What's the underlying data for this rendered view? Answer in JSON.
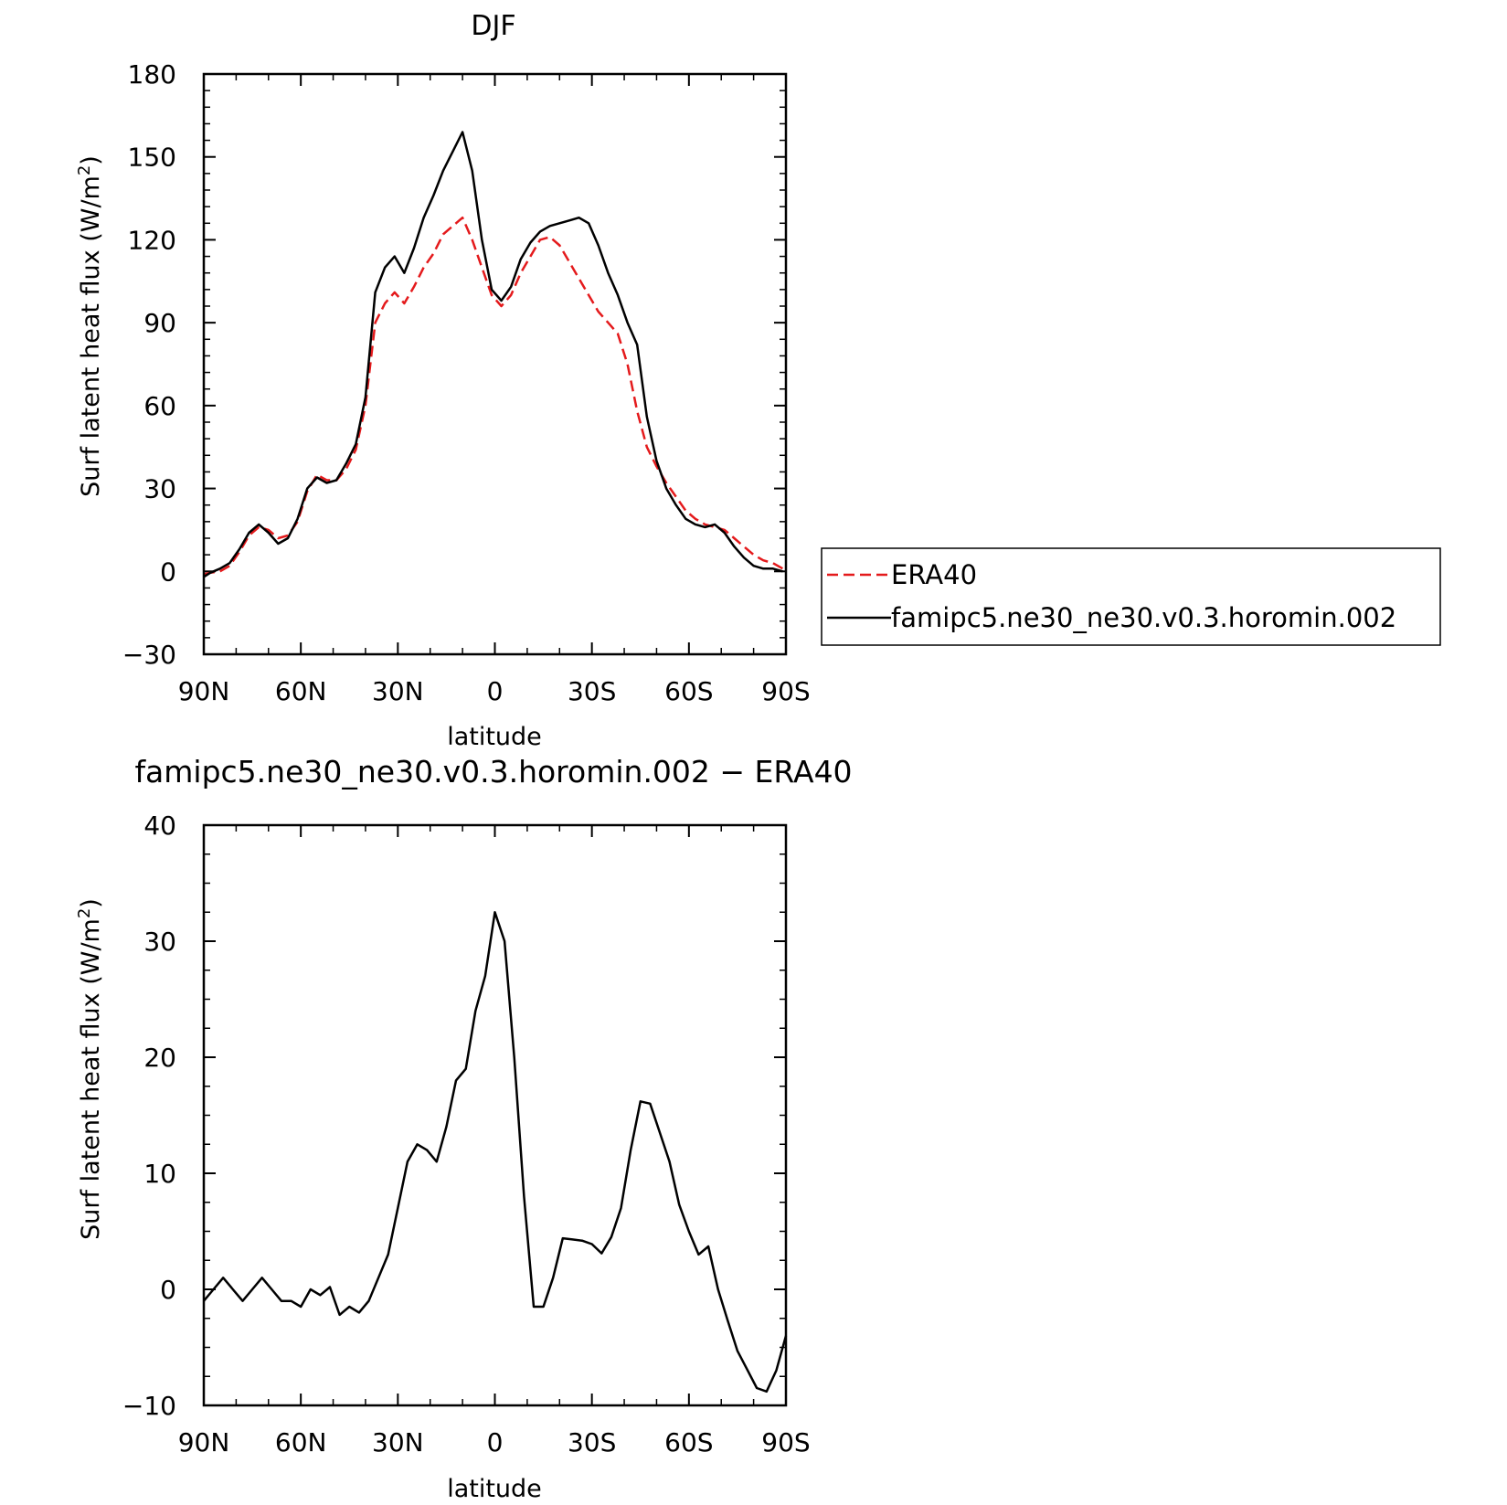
{
  "chart_data": [
    {
      "type": "line",
      "title": "DJF",
      "xlabel": "latitude",
      "ylabel": "Surf latent heat flux (W/m²)",
      "ylabel_text": "Surf latent heat flux (W/m",
      "ylabel_sup": "2",
      "ylabel_close": ")",
      "xlim": [
        90,
        -90
      ],
      "ylim": [
        -30,
        180
      ],
      "xticks": [
        90,
        60,
        30,
        0,
        -30,
        -60,
        -90
      ],
      "xtick_labels": [
        "90N",
        "60N",
        "30N",
        "0",
        "30S",
        "60S",
        "90S"
      ],
      "yticks": [
        -30,
        0,
        30,
        60,
        90,
        120,
        150,
        180
      ],
      "ytick_labels": [
        "−30",
        "0",
        "30",
        "60",
        "90",
        "120",
        "150",
        "180"
      ],
      "legend": {
        "placement": "right",
        "entries": [
          "ERA40",
          "famipc5.ne30_ne30.v0.3.horomin.002"
        ]
      },
      "series": [
        {
          "name": "ERA40",
          "color": "#e41a1c",
          "style": "dashed",
          "x": [
            90,
            88,
            85,
            82,
            79,
            76,
            73,
            70,
            67,
            64,
            61,
            58,
            55,
            52,
            49,
            46,
            43,
            40,
            37,
            34,
            31,
            28,
            25,
            22,
            19,
            16,
            13,
            10,
            7,
            4,
            1,
            -2,
            -5,
            -8,
            -11,
            -14,
            -17,
            -20,
            -23,
            -26,
            -29,
            -32,
            -35,
            -38,
            -41,
            -44,
            -47,
            -50,
            -53,
            -56,
            -59,
            -62,
            -65,
            -68,
            -71,
            -74,
            -77,
            -80,
            -83,
            -86,
            -89
          ],
          "y": [
            -1,
            -0.5,
            0,
            2,
            7,
            13,
            16,
            15,
            12,
            13,
            18,
            29,
            35,
            33,
            33,
            37,
            44,
            60,
            90,
            97,
            101,
            97,
            103,
            110,
            115,
            122,
            125,
            128,
            120,
            110,
            100,
            96,
            100,
            108,
            114,
            120,
            121,
            118,
            112,
            106,
            100,
            94,
            90,
            86,
            75,
            58,
            45,
            38,
            32,
            27,
            22,
            19,
            17,
            16,
            15,
            12,
            9,
            6,
            4,
            3,
            1
          ]
        },
        {
          "name": "famipc5.ne30_ne30.v0.3.horomin.002",
          "color": "#000000",
          "style": "solid",
          "x": [
            90,
            88,
            85,
            82,
            79,
            76,
            73,
            70,
            67,
            64,
            61,
            58,
            55,
            52,
            49,
            46,
            43,
            40,
            37,
            34,
            31,
            28,
            25,
            22,
            19,
            16,
            13,
            10,
            7,
            4,
            1,
            -2,
            -5,
            -8,
            -11,
            -14,
            -17,
            -20,
            -23,
            -26,
            -29,
            -32,
            -35,
            -38,
            -41,
            -44,
            -47,
            -50,
            -53,
            -56,
            -59,
            -62,
            -65,
            -68,
            -71,
            -74,
            -77,
            -80,
            -83,
            -86,
            -89
          ],
          "y": [
            -2,
            -0.5,
            1,
            3,
            8,
            14,
            17,
            14,
            10,
            12,
            19,
            30,
            34,
            32,
            33,
            39,
            46,
            63,
            101,
            110,
            114,
            108,
            117,
            128,
            136,
            145,
            152,
            159,
            145,
            120,
            102,
            98,
            103,
            113,
            119,
            123,
            125,
            126,
            127,
            128,
            126,
            118,
            108,
            100,
            90,
            82,
            56,
            40,
            30,
            24,
            19,
            17,
            16,
            17,
            14,
            9,
            5,
            2,
            1,
            1,
            0
          ]
        }
      ]
    },
    {
      "type": "line",
      "title": "famipc5.ne30_ne30.v0.3.horomin.002 − ERA40",
      "xlabel": "latitude",
      "ylabel": "Surf latent heat flux (W/m²)",
      "ylabel_text": "Surf latent heat flux (W/m",
      "ylabel_sup": "2",
      "ylabel_close": ")",
      "xlim": [
        90,
        -90
      ],
      "ylim": [
        -10,
        40
      ],
      "xticks": [
        90,
        60,
        30,
        0,
        -30,
        -60,
        -90
      ],
      "xtick_labels": [
        "90N",
        "60N",
        "30N",
        "0",
        "30S",
        "60S",
        "90S"
      ],
      "yticks": [
        -10,
        0,
        10,
        20,
        30,
        40
      ],
      "ytick_labels": [
        "−10",
        "0",
        "10",
        "20",
        "30",
        "40"
      ],
      "series": [
        {
          "color": "#000000",
          "style": "solid",
          "x": [
            90,
            87,
            84,
            81,
            78,
            75,
            72,
            69,
            66,
            63,
            60,
            57,
            54,
            51,
            48,
            45,
            42,
            39,
            36,
            33,
            30,
            27,
            24,
            21,
            18,
            15,
            12,
            9,
            6,
            3,
            0,
            -3,
            -6,
            -9,
            -12,
            -15,
            -18,
            -21,
            -24,
            -27,
            -30,
            -33,
            -36,
            -39,
            -42,
            -45,
            -48,
            -51,
            -54,
            -57,
            -60,
            -63,
            -66,
            -69,
            -72,
            -75,
            -78,
            -81,
            -84,
            -87,
            -90
          ],
          "y": [
            -1,
            0,
            1,
            0,
            -1,
            0,
            1,
            0,
            -1,
            -1,
            -1.5,
            0,
            -0.5,
            0.2,
            -2.2,
            -1.5,
            -2,
            -1,
            1,
            3,
            7,
            11,
            12.5,
            12,
            11,
            14,
            18,
            19,
            24,
            27,
            32.5,
            30,
            20,
            8,
            -1.5,
            -1.5,
            1,
            4.4,
            4.3,
            4.2,
            3.9,
            3.1,
            4.5,
            7,
            12,
            16.2,
            16,
            13.5,
            11,
            7.3,
            5,
            3,
            3.7,
            0,
            -2.7,
            -5.3,
            -6.9,
            -8.5,
            -8.8,
            -7,
            -4
          ]
        }
      ]
    }
  ]
}
